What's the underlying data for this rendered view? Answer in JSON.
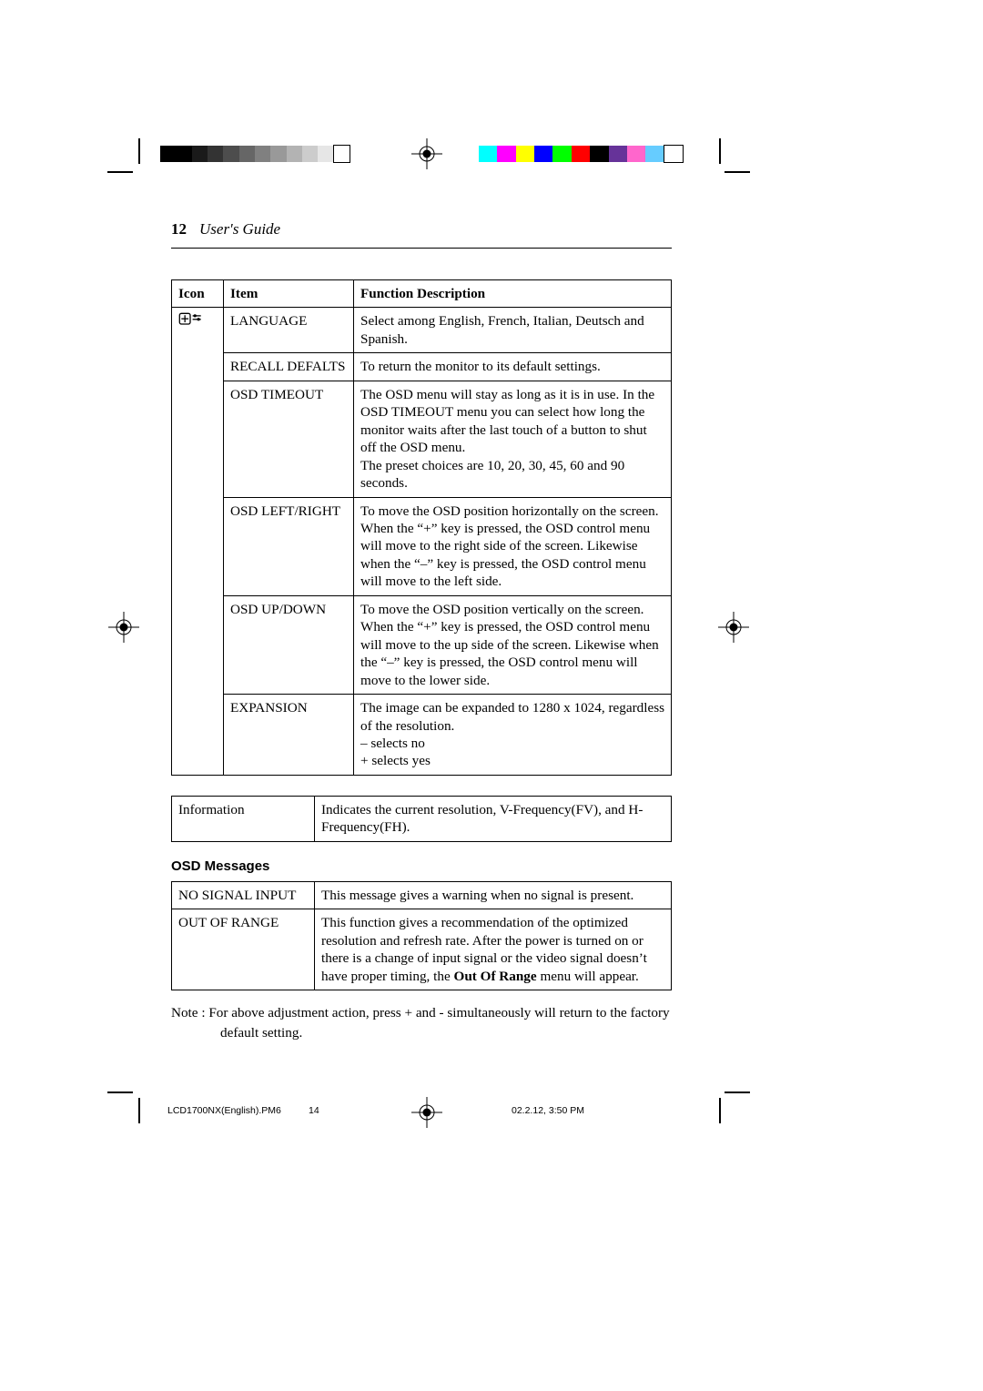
{
  "runningHead": {
    "pageNumber": "12",
    "title": "User's Guide"
  },
  "grayBar": [
    "#000000",
    "#000000",
    "#1a1a1a",
    "#333333",
    "#4d4d4d",
    "#666666",
    "#808080",
    "#999999",
    "#b3b3b3",
    "#cccccc",
    "#e6e6e6",
    "#ffffff"
  ],
  "colorBar": [
    "#00ffff",
    "#ff00ff",
    "#ffff00",
    "#0000ff",
    "#00ff00",
    "#ff0000",
    "#000000",
    "#663399",
    "#ff66cc",
    "#66ccff",
    "#ffffff"
  ],
  "mainTable": {
    "headers": {
      "icon": "Icon",
      "item": "Item",
      "desc": "Function Description"
    },
    "rows": [
      {
        "item": "LANGUAGE",
        "desc": "Select among English, French, Italian, Deutsch and Spanish."
      },
      {
        "item": "RECALL DEFALTS",
        "desc": "To return the monitor to its default settings."
      },
      {
        "item": "OSD TIMEOUT",
        "desc": "The OSD menu will stay as long as it is in use. In the OSD TIMEOUT menu you can select how long the monitor waits after the last touch of a button to shut off the OSD menu.\nThe preset choices are 10, 20, 30, 45, 60 and 90 seconds."
      },
      {
        "item": "OSD LEFT/RIGHT",
        "desc": "To move the OSD position horizontally on the screen. When the “+” key is pressed, the OSD control menu will move to the right side of the screen. Likewise when the “–” key is pressed, the OSD control menu will move to the left side."
      },
      {
        "item": "OSD UP/DOWN",
        "desc": "To move the OSD position vertically on the screen. When the “+” key is pressed, the OSD control menu will move to the up side of the screen. Likewise when the “–” key is pressed, the OSD control menu will move to the lower side."
      },
      {
        "item": "EXPANSION",
        "desc": "The image can be expanded to 1280 x 1024, regardless of the resolution.\n– selects no\n+ selects yes"
      }
    ]
  },
  "infoTable": {
    "label": "Information",
    "desc": "Indicates the current resolution, V-Frequency(FV), and H-Frequency(FH)."
  },
  "osdHeading": "OSD Messages",
  "msgTable": {
    "rows": [
      {
        "label": "NO SIGNAL INPUT",
        "desc": "This message gives a warning when no signal is present."
      },
      {
        "label": "OUT OF RANGE",
        "descPre": "This function gives a recommendation of the optimized resolution and refresh rate. After the power is turned on or there is a change of input signal or the video signal doesn’t have proper timing, the ",
        "descBold": "Out Of Range",
        "descPost": " menu will appear."
      }
    ]
  },
  "note": {
    "prefix": "Note :",
    "text": "For above adjustment action, press + and - simultaneously will return to the factory default setting."
  },
  "footer": {
    "filename": "LCD1700NX(English).PM6",
    "page": "14",
    "datetime": "02.2.12, 3:50 PM"
  }
}
